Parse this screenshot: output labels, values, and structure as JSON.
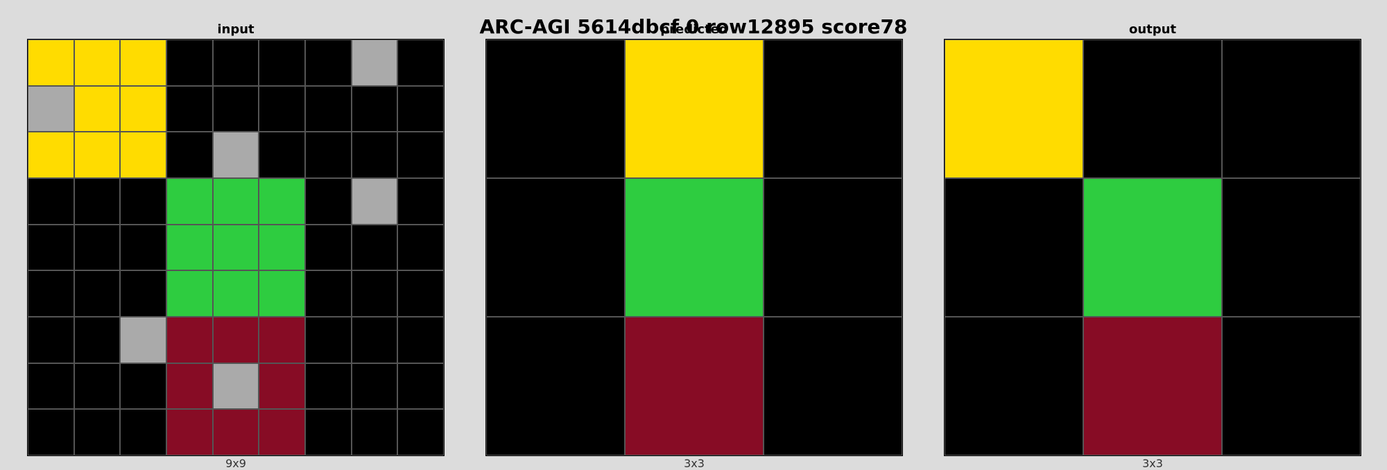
{
  "title": "ARC-AGI 5614dbcf 0 row12895 score78",
  "palette": {
    "0": "#000000",
    "4": "#ffdc00",
    "3": "#2ecc40",
    "5": "#aaaaaa",
    "9": "#870c25"
  },
  "panels": [
    {
      "id": "input",
      "label": "input",
      "size_label": "9x9",
      "grid": [
        [
          4,
          4,
          4,
          0,
          0,
          0,
          0,
          5,
          0
        ],
        [
          5,
          4,
          4,
          0,
          0,
          0,
          0,
          0,
          0
        ],
        [
          4,
          4,
          4,
          0,
          5,
          0,
          0,
          0,
          0
        ],
        [
          0,
          0,
          0,
          3,
          3,
          3,
          0,
          5,
          0
        ],
        [
          0,
          0,
          0,
          3,
          3,
          3,
          0,
          0,
          0
        ],
        [
          0,
          0,
          0,
          3,
          3,
          3,
          0,
          0,
          0
        ],
        [
          0,
          0,
          5,
          9,
          9,
          9,
          0,
          0,
          0
        ],
        [
          0,
          0,
          0,
          9,
          5,
          9,
          0,
          0,
          0
        ],
        [
          0,
          0,
          0,
          9,
          9,
          9,
          0,
          0,
          0
        ]
      ]
    },
    {
      "id": "predicted",
      "label": "predicted",
      "size_label": "3x3",
      "grid": [
        [
          0,
          4,
          0
        ],
        [
          0,
          3,
          0
        ],
        [
          0,
          9,
          0
        ]
      ]
    },
    {
      "id": "output",
      "label": "output",
      "size_label": "3x3",
      "grid": [
        [
          4,
          0,
          0
        ],
        [
          0,
          3,
          0
        ],
        [
          0,
          9,
          0
        ]
      ]
    }
  ]
}
